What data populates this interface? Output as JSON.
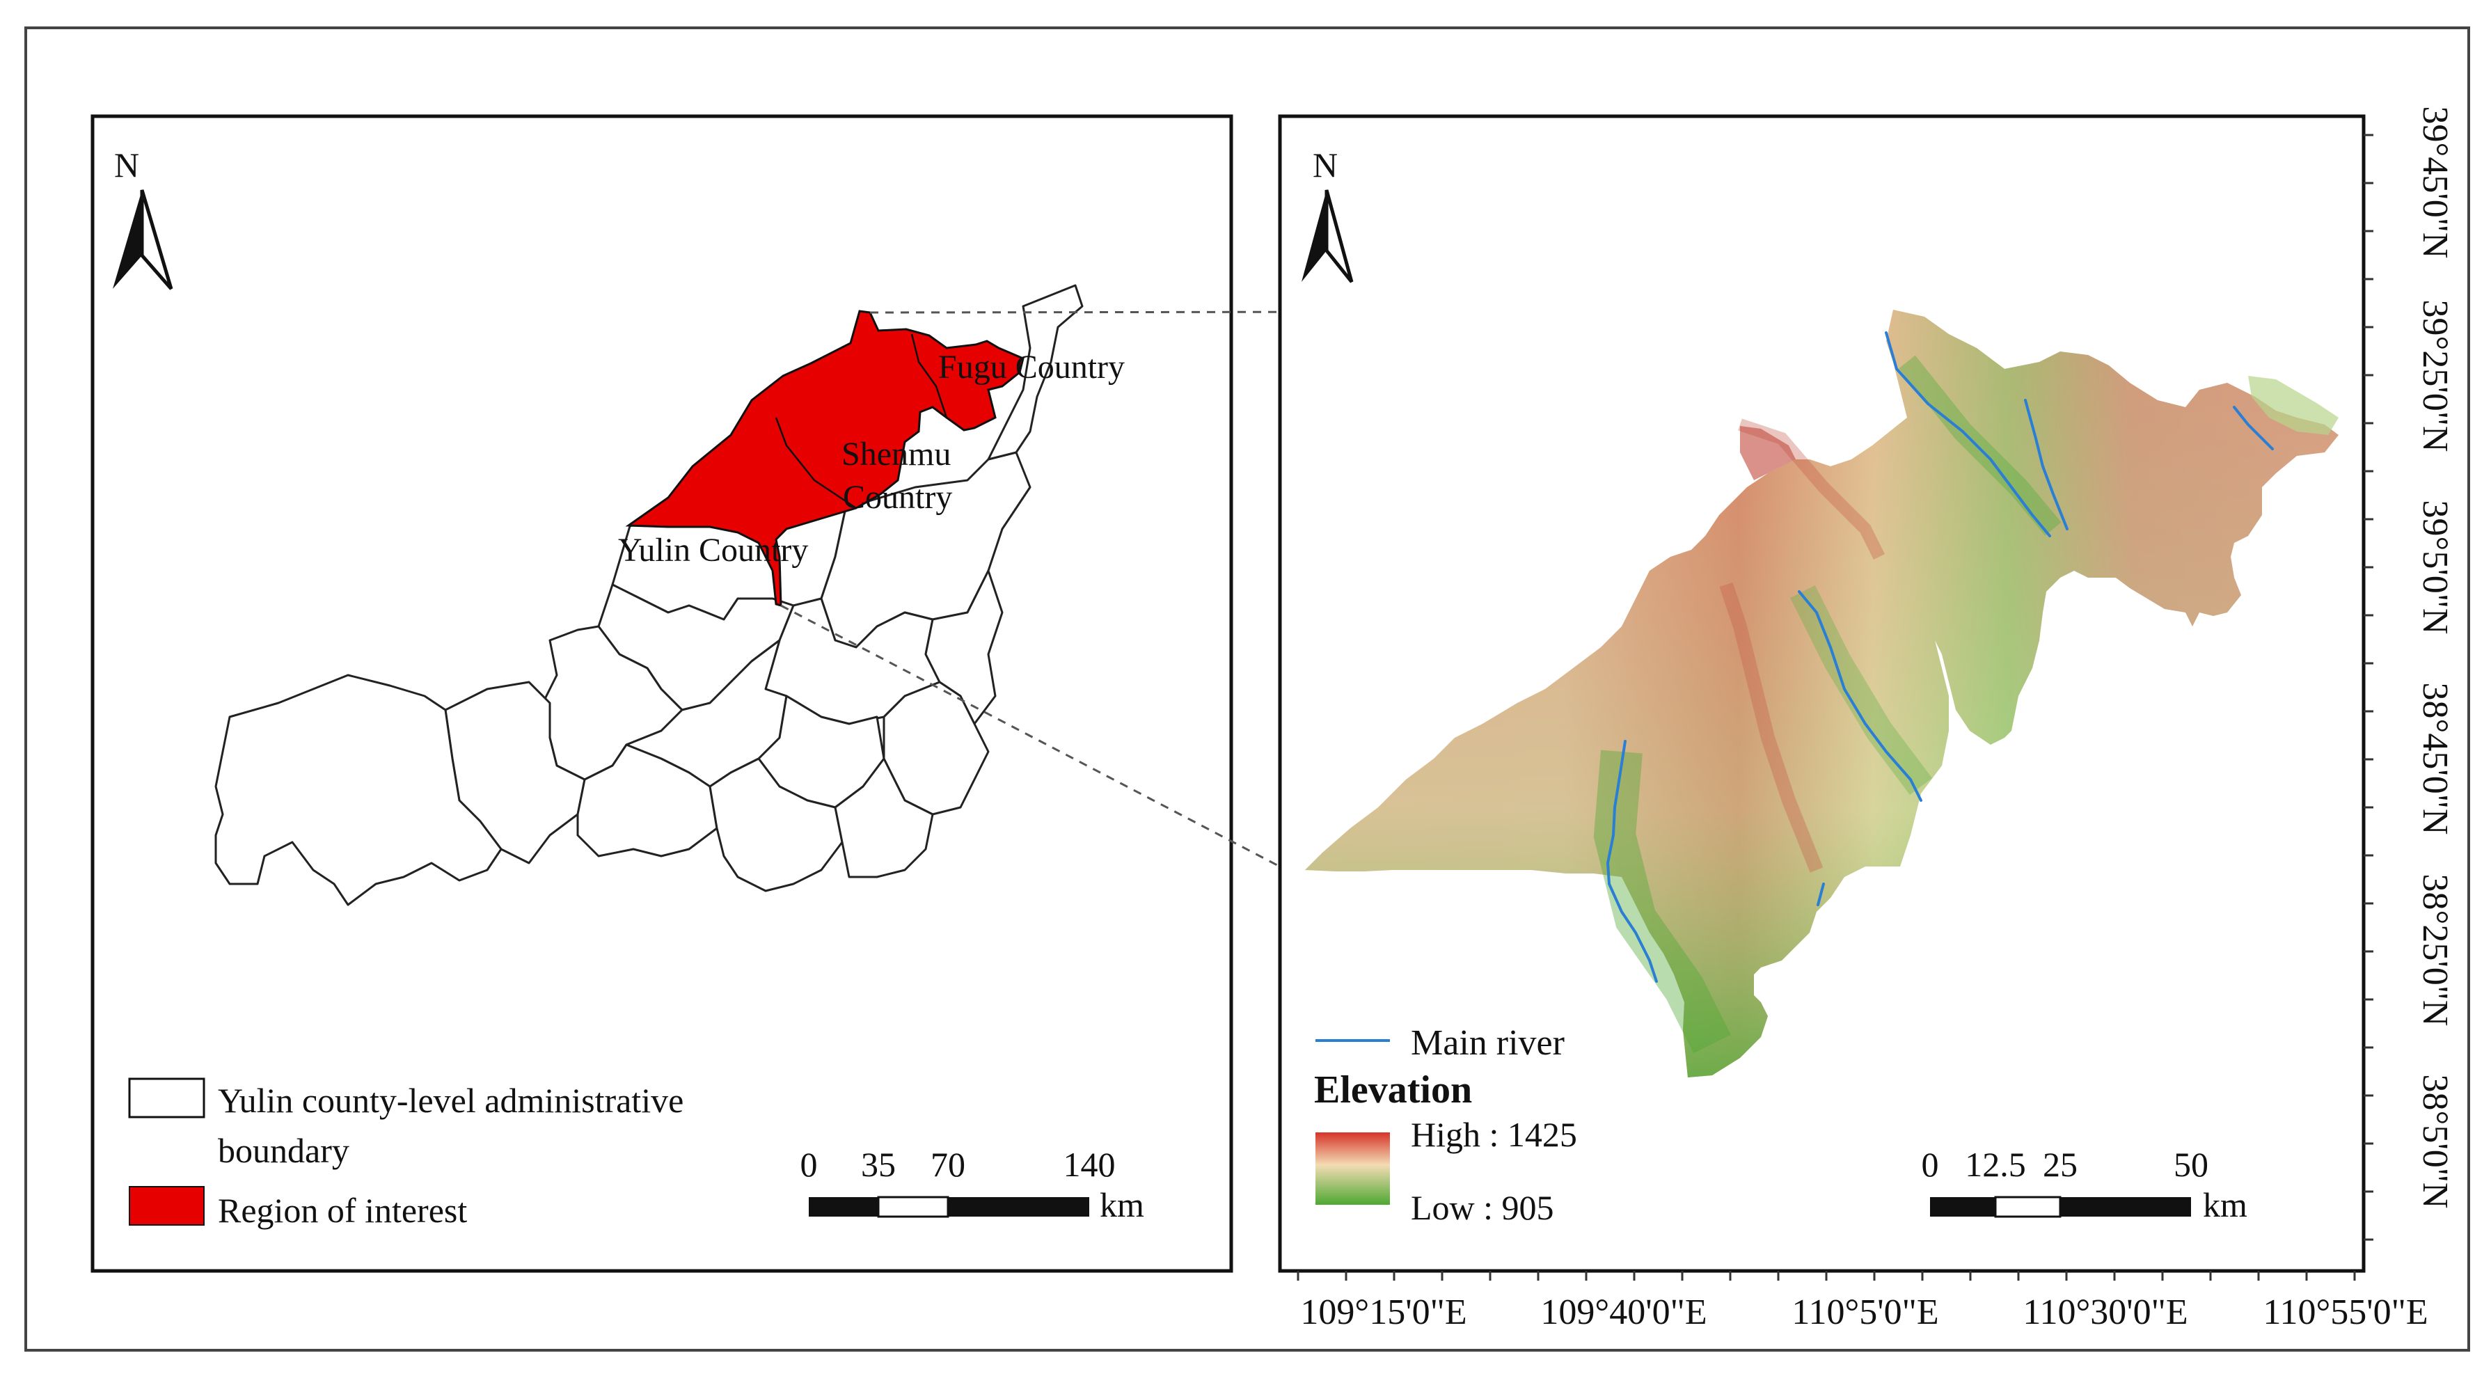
{
  "left_map": {
    "north_label": "N",
    "county_labels": [
      "Fugu Country",
      "Shenmu",
      "Country",
      "Yulin Country"
    ],
    "legend": {
      "boundary_label_line1": "Yulin county-level administrative",
      "boundary_label_line2": "boundary",
      "roi_label": "Region of interest",
      "roi_color": "#e60000"
    },
    "scale_bar": {
      "ticks": [
        "0",
        "35",
        "70",
        "140"
      ],
      "unit": "km"
    }
  },
  "right_map": {
    "north_label": "N",
    "legend": {
      "river_label": "Main river",
      "river_color": "#2a7fd4",
      "elevation_title": "Elevation",
      "high_label": "High : 1425",
      "low_label": "Low : 905",
      "high_color": "#d6342a",
      "low_color": "#4ea832"
    },
    "scale_bar": {
      "ticks": [
        "0",
        "12.5",
        "25",
        "50"
      ],
      "unit": "km"
    },
    "longitude_labels": [
      "109°15'0\"E",
      "109°40'0\"E",
      "110°5'0\"E",
      "110°30'0\"E",
      "110°55'0\"E"
    ],
    "latitude_labels": [
      "39°45'0\"N",
      "39°25'0\"N",
      "39°5'0\"N",
      "38°45'0\"N",
      "38°25'0\"N",
      "38°5'0\"N"
    ]
  }
}
